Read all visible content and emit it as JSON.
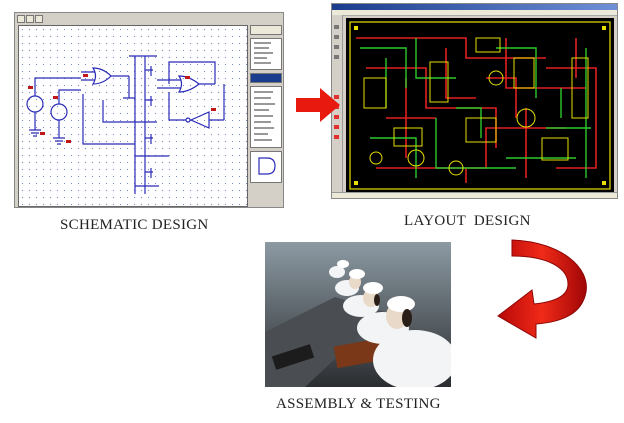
{
  "stages": {
    "schematic": {
      "caption": "SCHEMATIC DESIGN"
    },
    "layout": {
      "caption": "LAYOUT  DESIGN"
    },
    "assembly": {
      "caption": "ASSEMBLY & TESTING"
    }
  },
  "colors": {
    "arrow_red": "#e8190f",
    "schematic_wire": "#2a2ab8",
    "pcb_board": "#000000",
    "pcb_trace_red": "#e02020",
    "pcb_trace_green": "#2ec82e",
    "pcb_outline_yellow": "#e8e000"
  }
}
